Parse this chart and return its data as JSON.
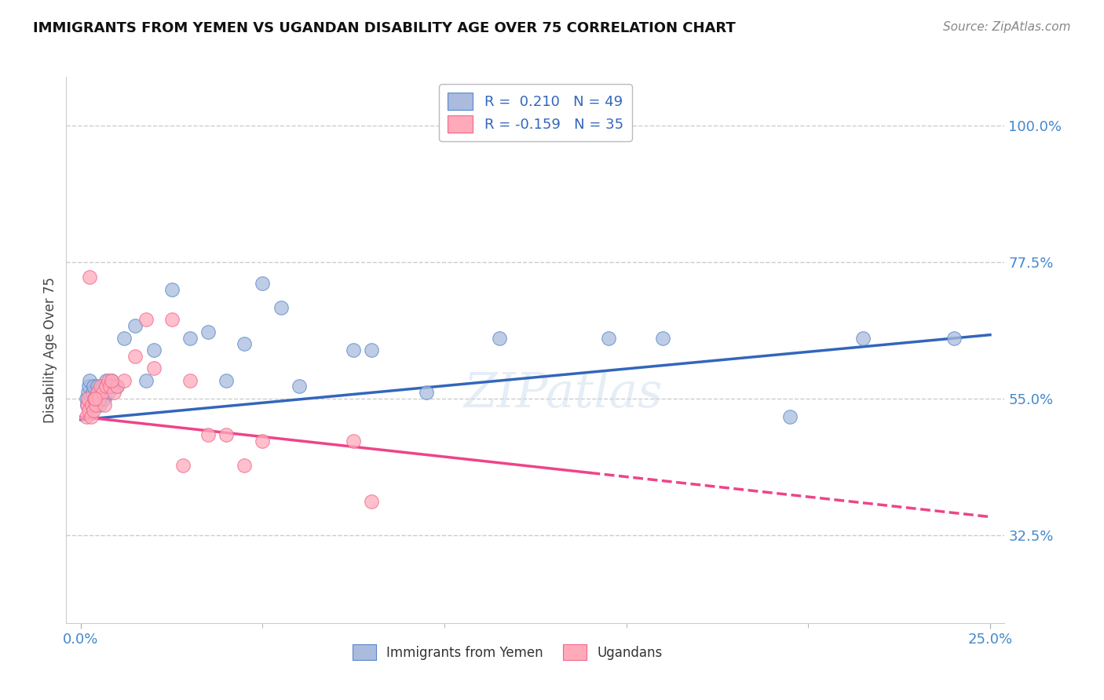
{
  "title": "IMMIGRANTS FROM YEMEN VS UGANDAN DISABILITY AGE OVER 75 CORRELATION CHART",
  "source": "Source: ZipAtlas.com",
  "ylabel": "Disability Age Over 75",
  "y_ticks": [
    32.5,
    55.0,
    77.5,
    100.0
  ],
  "y_tick_labels": [
    "32.5%",
    "55.0%",
    "77.5%",
    "100.0%"
  ],
  "x_min": 0.0,
  "x_max": 25.0,
  "y_min": 18.0,
  "y_max": 108.0,
  "legend1_r": " 0.210",
  "legend1_n": "49",
  "legend2_r": "-0.159",
  "legend2_n": "35",
  "blue_fill": "#AABBDD",
  "pink_fill": "#FFAABB",
  "blue_edge": "#5588CC",
  "pink_edge": "#EE6688",
  "blue_line_color": "#3366BB",
  "pink_line_color": "#EE4488",
  "title_color": "#111111",
  "axis_tick_color": "#4488CC",
  "source_color": "#888888",
  "grid_color": "#CCCCCC",
  "blue_trend_x0": 0.0,
  "blue_trend_y0": 51.5,
  "blue_trend_x1": 25.0,
  "blue_trend_y1": 65.5,
  "pink_trend_x0": 0.0,
  "pink_trend_y0": 52.0,
  "pink_trend_x1": 25.0,
  "pink_trend_y1": 35.5,
  "pink_solid_end_x": 14.0,
  "blue_x": [
    0.15,
    0.18,
    0.2,
    0.22,
    0.25,
    0.28,
    0.3,
    0.32,
    0.35,
    0.38,
    0.4,
    0.42,
    0.45,
    0.48,
    0.5,
    0.52,
    0.55,
    0.58,
    0.6,
    0.62,
    0.65,
    0.7,
    0.72,
    0.75,
    0.8,
    0.85,
    0.9,
    1.0,
    1.2,
    1.5,
    1.8,
    2.0,
    2.5,
    3.0,
    3.5,
    4.0,
    4.5,
    5.0,
    6.0,
    8.0,
    9.5,
    11.5,
    14.5,
    16.0,
    19.5,
    21.5,
    24.0,
    5.5,
    7.5
  ],
  "blue_y": [
    55.0,
    54.0,
    56.0,
    57.0,
    58.0,
    55.0,
    54.0,
    56.0,
    57.0,
    55.0,
    54.0,
    55.0,
    57.0,
    56.0,
    55.0,
    54.0,
    56.0,
    55.0,
    57.0,
    56.0,
    55.0,
    58.0,
    57.0,
    56.0,
    57.0,
    58.0,
    57.0,
    57.0,
    65.0,
    67.0,
    58.0,
    63.0,
    73.0,
    65.0,
    66.0,
    58.0,
    64.0,
    74.0,
    57.0,
    63.0,
    56.0,
    65.0,
    65.0,
    65.0,
    52.0,
    65.0,
    65.0,
    70.0,
    63.0
  ],
  "pink_x": [
    0.15,
    0.18,
    0.2,
    0.22,
    0.25,
    0.28,
    0.3,
    0.35,
    0.38,
    0.42,
    0.45,
    0.5,
    0.55,
    0.6,
    0.65,
    0.7,
    0.75,
    0.8,
    0.9,
    1.0,
    1.2,
    1.5,
    1.8,
    2.0,
    2.5,
    3.0,
    3.5,
    4.0,
    5.0,
    7.5,
    8.0,
    0.4,
    0.85,
    2.8,
    4.5
  ],
  "pink_y": [
    52.0,
    54.0,
    55.0,
    53.0,
    75.0,
    52.0,
    54.0,
    53.0,
    55.0,
    54.0,
    56.0,
    55.0,
    57.0,
    56.0,
    54.0,
    57.0,
    58.0,
    57.0,
    56.0,
    57.0,
    58.0,
    62.0,
    68.0,
    60.0,
    68.0,
    58.0,
    49.0,
    49.0,
    48.0,
    48.0,
    38.0,
    55.0,
    58.0,
    44.0,
    44.0
  ]
}
